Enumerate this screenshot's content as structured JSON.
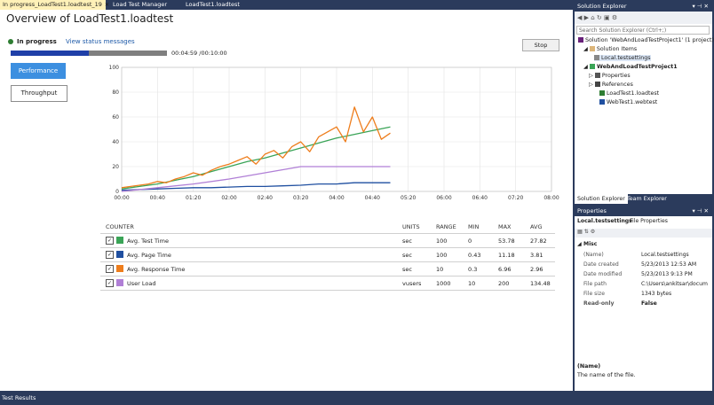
{
  "tabs": [
    {
      "label": "In progress_LoadTest1.loadtest_19",
      "active": true
    },
    {
      "label": "Load Test Manager",
      "active": false
    },
    {
      "label": "LoadTest1.loadtest",
      "active": false
    }
  ],
  "main": {
    "title": "Overview of LoadTest1.loadtest",
    "status": "In progress",
    "status_link": "View status messages",
    "progress_fraction": 0.5,
    "elapsed": "00:04:59",
    "total": "/00:10:00",
    "stop_label": "Stop",
    "views": [
      "Performance",
      "Throughput"
    ]
  },
  "chart_data": {
    "type": "line",
    "ylim": [
      0,
      100
    ],
    "yticks": [
      "0",
      "20",
      "40",
      "60",
      "80",
      "100"
    ],
    "xticks": [
      "00:00",
      "00:40",
      "01:20",
      "02:00",
      "02:40",
      "03:20",
      "04:00",
      "04:40",
      "05:20",
      "06:00",
      "06:40",
      "07:20",
      "08:00"
    ],
    "xlim": [
      0,
      480
    ],
    "series": [
      {
        "name": "Avg. Test Time",
        "color": "#3aa457",
        "x": [
          0,
          20,
          40,
          60,
          80,
          100,
          120,
          140,
          160,
          180,
          200,
          220,
          240,
          260,
          280,
          300
        ],
        "y": [
          2,
          4,
          6,
          9,
          12,
          16,
          20,
          24,
          27,
          31,
          35,
          39,
          43,
          46,
          49,
          52
        ]
      },
      {
        "name": "Avg. Page Time",
        "color": "#1f4fa0",
        "x": [
          0,
          20,
          40,
          60,
          80,
          100,
          120,
          140,
          160,
          180,
          200,
          220,
          240,
          260,
          280,
          300
        ],
        "y": [
          1,
          1.5,
          2,
          2.5,
          3,
          3,
          3.5,
          4,
          4,
          4.5,
          5,
          6,
          6,
          7,
          7,
          7
        ]
      },
      {
        "name": "Avg. Response Time",
        "color": "#ee7d1c",
        "x": [
          0,
          10,
          20,
          30,
          40,
          50,
          60,
          70,
          80,
          90,
          100,
          110,
          120,
          130,
          140,
          150,
          160,
          170,
          180,
          190,
          200,
          210,
          220,
          230,
          240,
          250,
          260,
          270,
          280,
          290,
          300
        ],
        "y": [
          3,
          4,
          5,
          6,
          8,
          7,
          10,
          12,
          15,
          13,
          17,
          20,
          22,
          25,
          28,
          22,
          30,
          33,
          27,
          36,
          40,
          32,
          44,
          48,
          52,
          40,
          68,
          48,
          60,
          42,
          47
        ]
      },
      {
        "name": "User Load",
        "color": "#b07fd6",
        "x": [
          0,
          40,
          80,
          120,
          160,
          200,
          240,
          280,
          300
        ],
        "y": [
          0,
          3,
          6,
          10,
          15,
          20,
          20,
          20,
          20
        ]
      }
    ]
  },
  "counters": {
    "headers": [
      "COUNTER",
      "UNITS",
      "RANGE",
      "MIN",
      "MAX",
      "AVG"
    ],
    "rows": [
      {
        "name": "Avg. Test Time",
        "units": "sec",
        "range": "100",
        "min": "0",
        "max": "53.78",
        "avg": "27.82",
        "color": "#3aa457"
      },
      {
        "name": "Avg. Page Time",
        "units": "sec",
        "range": "100",
        "min": "0.43",
        "max": "11.18",
        "avg": "3.81",
        "color": "#1f4fa0"
      },
      {
        "name": "Avg. Response Time",
        "units": "sec",
        "range": "10",
        "min": "0.3",
        "max": "6.96",
        "avg": "2.96",
        "color": "#ee7d1c"
      },
      {
        "name": "User Load",
        "units": "vusers",
        "range": "1000",
        "min": "10",
        "max": "200",
        "avg": "134.48",
        "color": "#b07fd6"
      }
    ]
  },
  "solution_explorer": {
    "title": "Solution Explorer",
    "search_placeholder": "Search Solution Explorer (Ctrl+;)",
    "items": [
      "Solution 'WebAndLoadTestProject1' (1 project)",
      "Solution Items",
      "Local.testsettings",
      "WebAndLoadTestProject1",
      "Properties",
      "References",
      "LoadTest1.loadtest",
      "WebTest1.webtest"
    ],
    "bottom_tabs": [
      "Solution Explorer",
      "Team Explorer"
    ]
  },
  "properties": {
    "title": "Properties",
    "object": "Local.testsettings",
    "object_type": "File Properties",
    "category": "Misc",
    "rows": [
      {
        "k": "(Name)",
        "v": "Local.testsettings"
      },
      {
        "k": "Date created",
        "v": "5/23/2013 12:53 AM"
      },
      {
        "k": "Date modified",
        "v": "5/23/2013 9:13 PM"
      },
      {
        "k": "File path",
        "v": "C:\\Users\\ankitsar\\docum"
      },
      {
        "k": "File size",
        "v": "1343 bytes"
      },
      {
        "k": "Read-only",
        "v": "False"
      }
    ],
    "desc_title": "(Name)",
    "desc_text": "The name of the file."
  },
  "statusbar": {
    "label": "Test Results"
  }
}
